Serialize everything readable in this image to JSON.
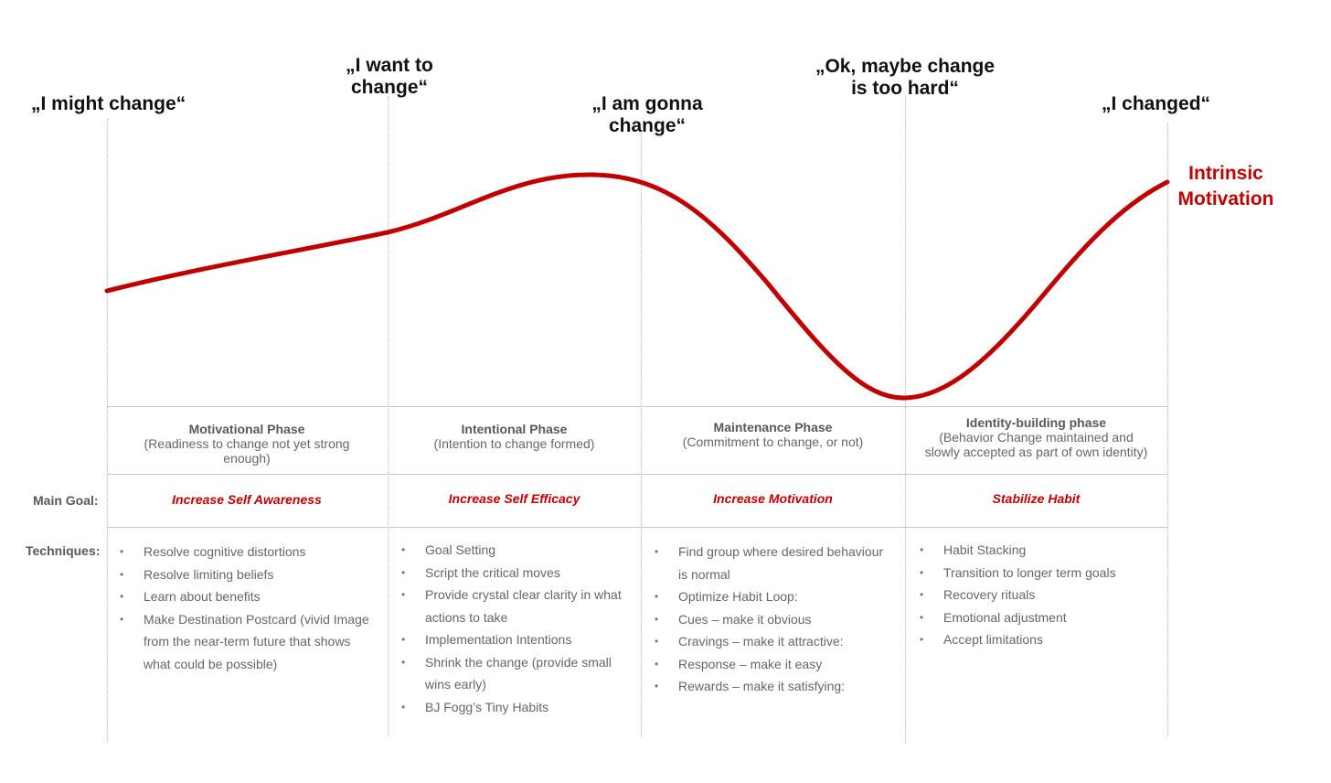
{
  "quotes": {
    "q1": "„I might change“",
    "q2_line1": "„I want to",
    "q2_line2": "change“",
    "q3_line1": "„I am gonna",
    "q3_line2": "change“",
    "q4_line1": "„Ok, maybe change",
    "q4_line2": "is too hard“",
    "q5": "„I changed“"
  },
  "curve": {
    "label_line1": "Intrinsic",
    "label_line2": "Motivation",
    "color": "#c00000"
  },
  "phases": [
    {
      "name": "Motivational Phase",
      "desc_line1": "(Readiness to change not yet strong",
      "desc_line2": "enough)"
    },
    {
      "name": "Intentional Phase",
      "desc_line1": "(Intention to change formed)",
      "desc_line2": ""
    },
    {
      "name": "Maintenance Phase",
      "desc_line1": "(Commitment to change, or not)",
      "desc_line2": ""
    },
    {
      "name": "Identity-building phase",
      "desc_line1": "(Behavior Change maintained and",
      "desc_line2": "slowly accepted as part of own identity)"
    }
  ],
  "row_labels": {
    "main_goal": "Main Goal:",
    "techniques": "Techniques:"
  },
  "goals": [
    "Increase Self Awareness",
    "Increase Self Efficacy",
    "Increase Motivation",
    "Stabilize Habit"
  ],
  "techniques": [
    [
      {
        "l1": "Resolve cognitive distortions"
      },
      {
        "l1": "Resolve limiting beliefs"
      },
      {
        "l1": "Learn about benefits"
      },
      {
        "l1": "Make Destination Postcard (vivid Image",
        "l2": "from the near-term future that shows",
        "l3": "what could be possible)"
      }
    ],
    [
      {
        "l1": "Goal Setting"
      },
      {
        "l1": "Script the critical moves"
      },
      {
        "l1": "Provide crystal clear clarity in what",
        "l2": "actions to take"
      },
      {
        "l1": "Implementation Intentions"
      },
      {
        "l1": "Shrink the change (provide small",
        "l2": "wins early)"
      },
      {
        "l1": "BJ Fogg’s Tiny Habits"
      }
    ],
    [
      {
        "l1": "Find group where desired behaviour",
        "l2": "is normal"
      },
      {
        "l1": "Optimize Habit Loop:"
      },
      {
        "l1": "Cues – make it obvious"
      },
      {
        "l1": "Cravings – make it attractive:"
      },
      {
        "l1": "Response – make it easy"
      },
      {
        "l1": "Rewards – make it satisfying:"
      }
    ],
    [
      {
        "l1": "Habit Stacking"
      },
      {
        "l1": "Transition to longer term goals"
      },
      {
        "l1": "Recovery rituals"
      },
      {
        "l1": "Emotional adjustment"
      },
      {
        "l1": "Accept limitations"
      }
    ]
  ]
}
